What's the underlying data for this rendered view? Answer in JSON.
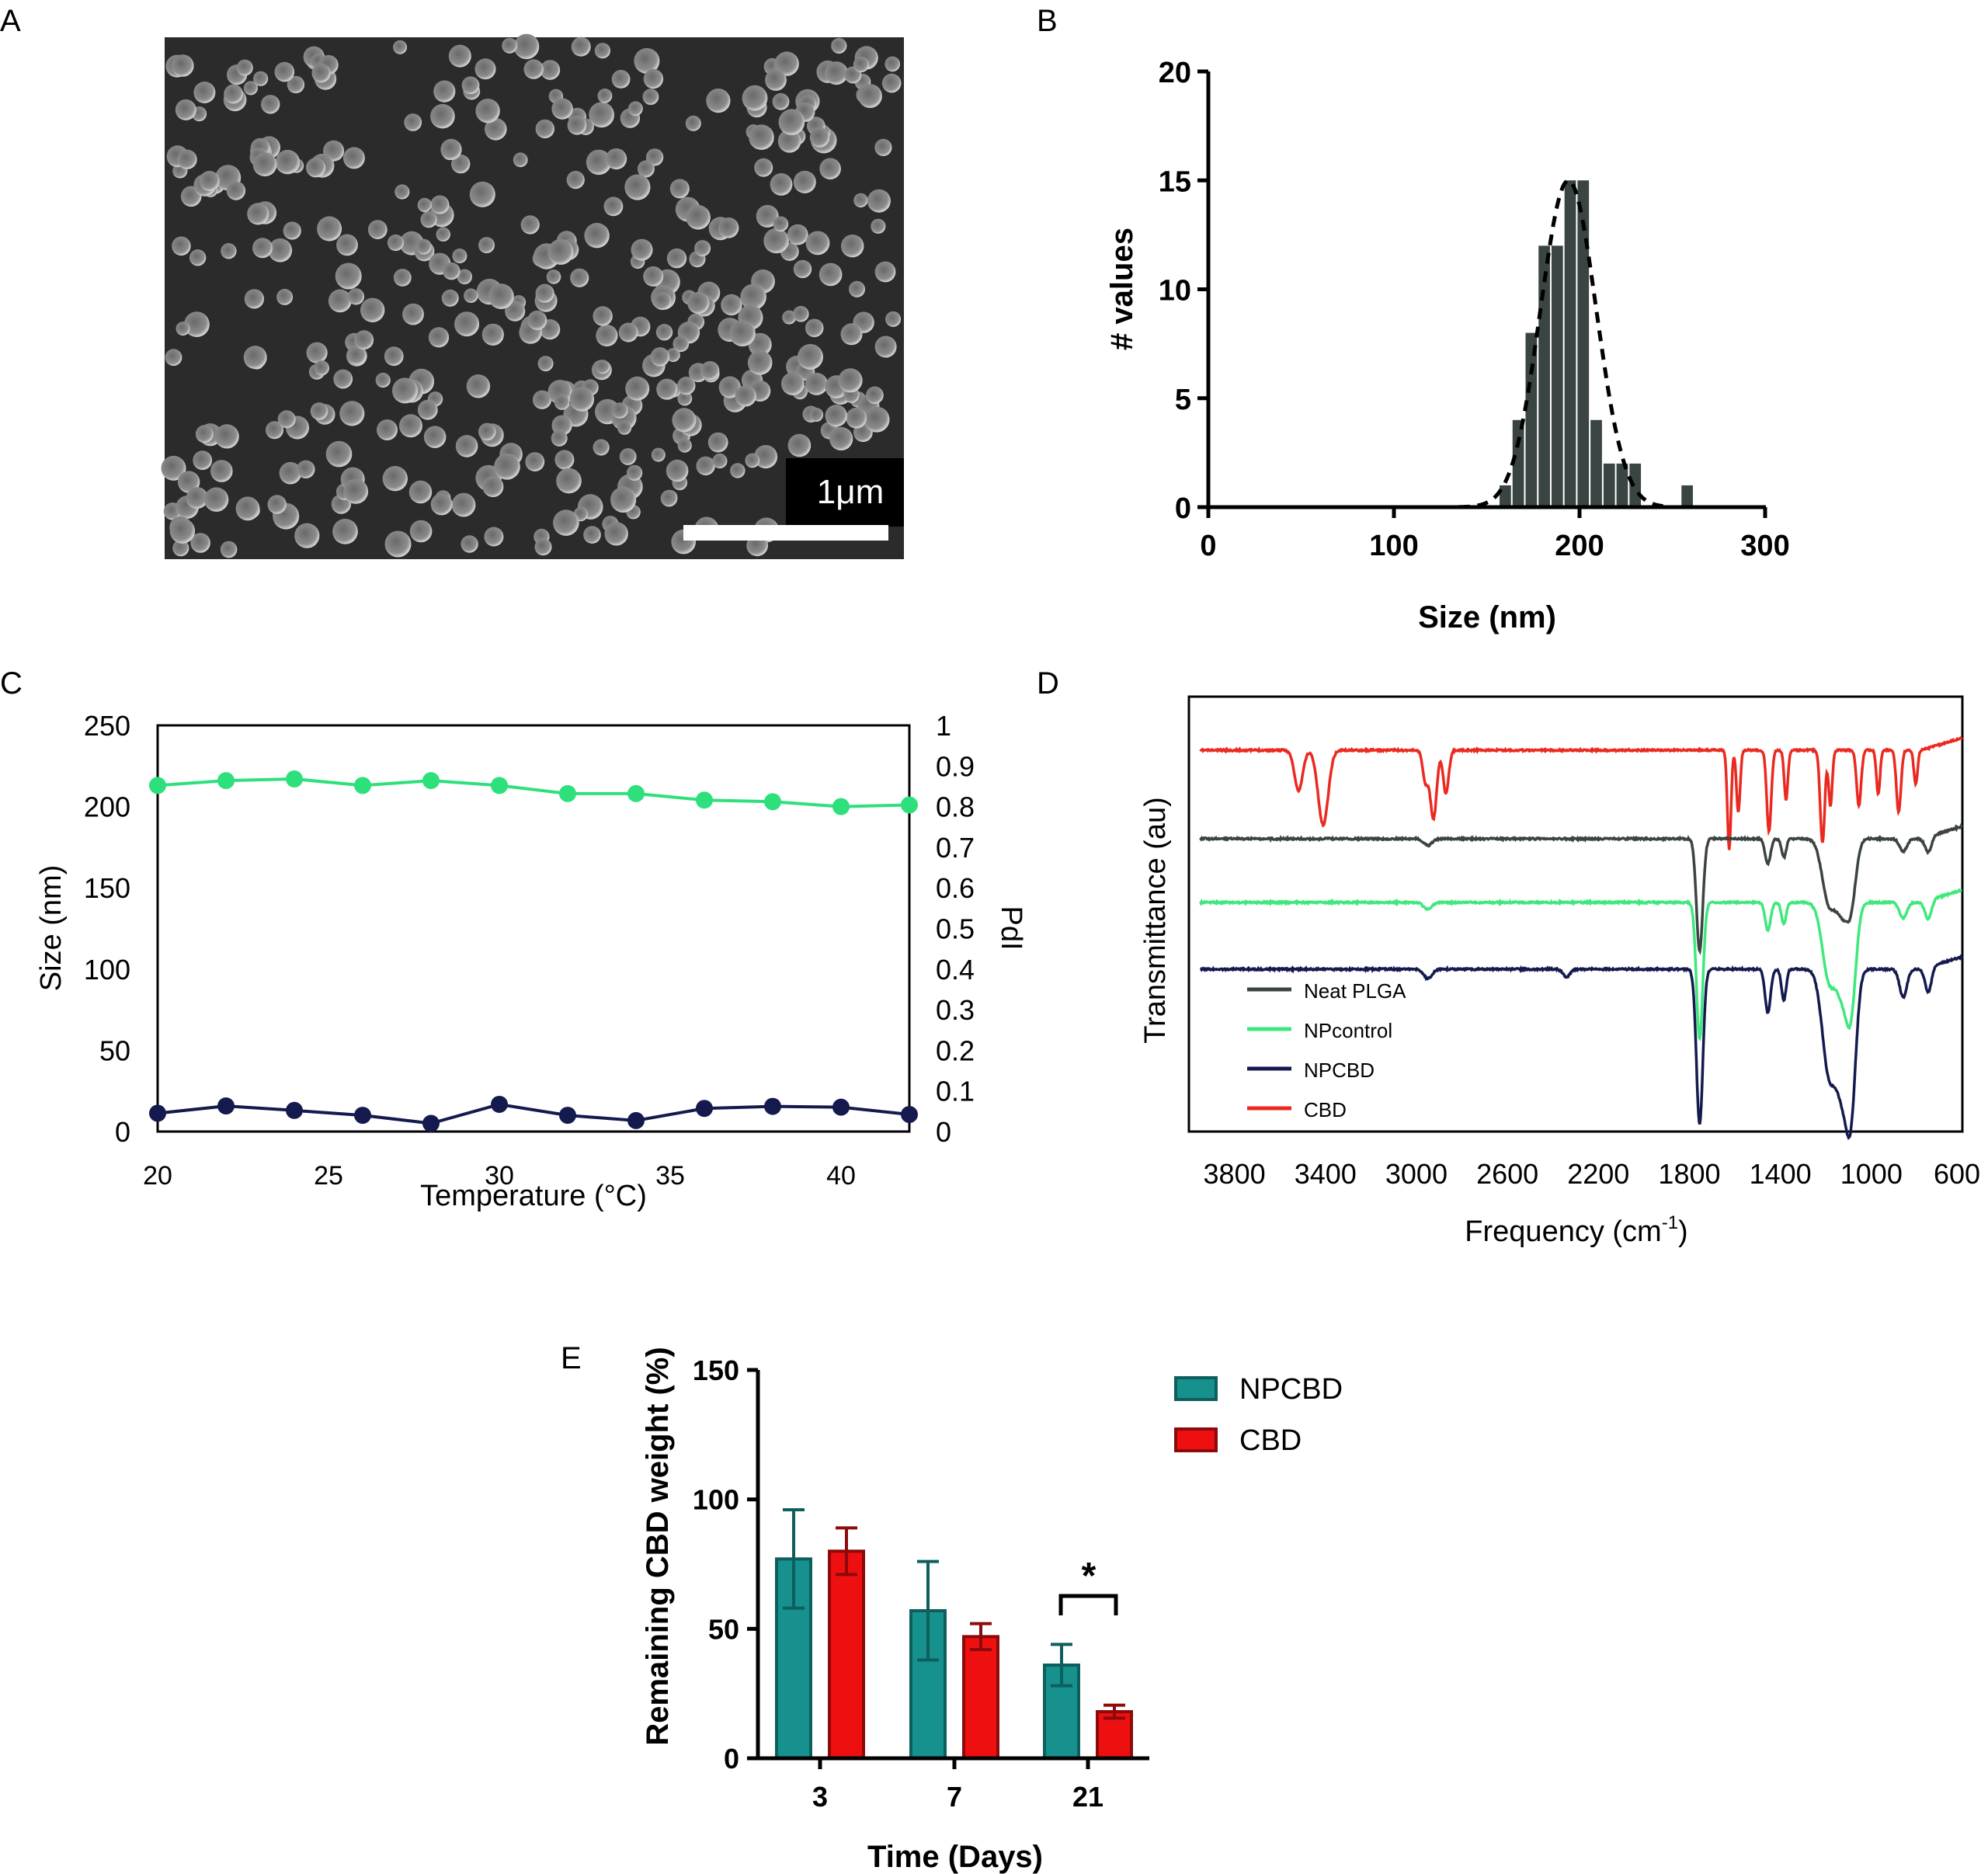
{
  "panels": {
    "A": {
      "letter": "A",
      "scale_bar_label": "1μm"
    },
    "B": {
      "letter": "B"
    },
    "C": {
      "letter": "C"
    },
    "D": {
      "letter": "D"
    },
    "E": {
      "letter": "E"
    }
  },
  "colors": {
    "hist_bar": "#3a4543",
    "size_line": "#2ee07c",
    "pdi_line": "#141a4d",
    "neat_plga": "#3c4442",
    "npcontrol": "#3ee87c",
    "npcbd": "#141a4d",
    "cbd": "#ea2a20",
    "bar_npcbd": "#17918e",
    "bar_cbd": "#ee1010"
  },
  "chart_data": [
    {
      "panel": "B",
      "type": "bar",
      "subtype": "histogram with gaussian fit",
      "xlabel": "Size (nm)",
      "ylabel": "# values",
      "xlim": [
        0,
        300
      ],
      "ylim": [
        0,
        20
      ],
      "xticks": [
        "0",
        "100",
        "200",
        "300"
      ],
      "yticks": [
        "0",
        "5",
        "10",
        "15",
        "20"
      ],
      "bin_width": 7,
      "bins": [
        {
          "center": 160,
          "count": 1
        },
        {
          "center": 167,
          "count": 4
        },
        {
          "center": 174,
          "count": 8
        },
        {
          "center": 181,
          "count": 12
        },
        {
          "center": 188,
          "count": 12
        },
        {
          "center": 195,
          "count": 15
        },
        {
          "center": 202,
          "count": 15
        },
        {
          "center": 209,
          "count": 4
        },
        {
          "center": 216,
          "count": 2
        },
        {
          "center": 223,
          "count": 2
        },
        {
          "center": 230,
          "count": 2
        },
        {
          "center": 258,
          "count": 1
        }
      ],
      "fit": {
        "style": "dashed",
        "mean": 194,
        "sd": 15,
        "peak": 15
      }
    },
    {
      "panel": "C",
      "type": "line",
      "xlabel": "Temperature (°C)",
      "ylabel": "Size (nm)",
      "y2label": "PdI",
      "xlim": [
        20,
        42
      ],
      "ylim": [
        0,
        250
      ],
      "y2lim": [
        0,
        1
      ],
      "xticks": [
        "20",
        "25",
        "30",
        "35",
        "40"
      ],
      "yticks": [
        "0",
        "50",
        "100",
        "150",
        "200",
        "250"
      ],
      "y2ticks": [
        "0",
        "0.1",
        "0.2",
        "0.3",
        "0.4",
        "0.5",
        "0.6",
        "0.7",
        "0.8",
        "0.9",
        "1"
      ],
      "x": [
        20,
        22,
        24,
        26,
        28,
        30,
        32,
        34,
        36,
        38,
        40,
        42
      ],
      "series": [
        {
          "axis": "left",
          "values": [
            213,
            216,
            217,
            213,
            216,
            213,
            208,
            208,
            204,
            203,
            200,
            201
          ]
        },
        {
          "axis": "right",
          "values": [
            0.045,
            0.063,
            0.052,
            0.04,
            0.02,
            0.067,
            0.04,
            0.027,
            0.057,
            0.062,
            0.06,
            0.042
          ]
        }
      ]
    },
    {
      "panel": "D",
      "type": "line",
      "subtype": "FTIR spectra (stacked, offset)",
      "xlabel_prefix": "Frequency (cm",
      "xlabel_sup": "-1",
      "xlabel_suffix": ")",
      "ylabel": "Transmittance (au)",
      "xlim": [
        4000,
        600
      ],
      "x_reversed": true,
      "xticks": [
        "3800",
        "3400",
        "3000",
        "2600",
        "2200",
        "1800",
        "1400",
        "1000",
        "600"
      ],
      "series": [
        {
          "name": "CBD",
          "offset": 0,
          "color_key": "cbd",
          "bands": [
            [
              3518,
              18,
              1.3
            ],
            [
              3410,
              22,
              2.4
            ],
            [
              2960,
              12,
              1.0
            ],
            [
              2925,
              14,
              2.2
            ],
            [
              2870,
              12,
              1.4
            ],
            [
              1625,
              8,
              3.2
            ],
            [
              1585,
              8,
              2.0
            ],
            [
              1450,
              10,
              2.6
            ],
            [
              1375,
              8,
              1.6
            ],
            [
              1215,
              10,
              3.0
            ],
            [
              1180,
              8,
              1.8
            ],
            [
              1055,
              10,
              1.8
            ],
            [
              970,
              8,
              1.4
            ],
            [
              880,
              10,
              2.0
            ],
            [
              805,
              8,
              1.1
            ]
          ]
        },
        {
          "name": "Neat PLGA",
          "offset": 1,
          "color_key": "neat_plga",
          "bands": [
            [
              2950,
              18,
              0.22
            ],
            [
              1755,
              14,
              3.6
            ],
            [
              1455,
              12,
              0.8
            ],
            [
              1385,
              10,
              0.6
            ],
            [
              1185,
              30,
              2.1
            ],
            [
              1130,
              24,
              1.8
            ],
            [
              1090,
              22,
              2.0
            ],
            [
              860,
              16,
              0.4
            ],
            [
              750,
              14,
              0.5
            ]
          ]
        },
        {
          "name": "NPcontrol",
          "offset": 2,
          "color_key": "npcontrol",
          "bands": [
            [
              2950,
              18,
              0.22
            ],
            [
              1755,
              14,
              4.4
            ],
            [
              1455,
              12,
              0.9
            ],
            [
              1385,
              10,
              0.7
            ],
            [
              1185,
              30,
              2.5
            ],
            [
              1130,
              24,
              2.2
            ],
            [
              1090,
              22,
              3.3
            ],
            [
              860,
              16,
              0.5
            ],
            [
              750,
              14,
              0.6
            ]
          ]
        },
        {
          "name": "NPCBD",
          "offset": 3,
          "color_key": "npcbd",
          "bands": [
            [
              2950,
              18,
              0.3
            ],
            [
              2340,
              15,
              0.25
            ],
            [
              1755,
              14,
              5.0
            ],
            [
              1455,
              12,
              1.4
            ],
            [
              1385,
              10,
              1.0
            ],
            [
              1185,
              30,
              3.4
            ],
            [
              1130,
              24,
              3.0
            ],
            [
              1090,
              22,
              4.4
            ],
            [
              860,
              16,
              0.9
            ],
            [
              750,
              14,
              0.8
            ]
          ]
        }
      ],
      "legend": [
        {
          "name": "Neat PLGA",
          "color_key": "neat_plga"
        },
        {
          "name": "NPcontrol",
          "color_key": "npcontrol"
        },
        {
          "name": "NPCBD",
          "color_key": "npcbd"
        },
        {
          "name": "CBD",
          "color_key": "cbd"
        }
      ]
    },
    {
      "panel": "E",
      "type": "bar",
      "subtype": "grouped bar with error bars",
      "xlabel": "Time (Days)",
      "ylabel": "Remaining CBD weight (%)",
      "ylim": [
        0,
        150
      ],
      "yticks": [
        "0",
        "50",
        "100",
        "150"
      ],
      "categories": [
        "3",
        "7",
        "21"
      ],
      "series": [
        {
          "name": "NPCBD",
          "color_key": "bar_npcbd",
          "values": [
            77,
            57,
            36
          ],
          "errors": [
            19,
            19,
            8
          ]
        },
        {
          "name": "CBD",
          "color_key": "bar_cbd",
          "values": [
            80,
            47,
            18
          ],
          "errors": [
            9,
            5,
            2.5
          ]
        }
      ],
      "significance": {
        "between": "21",
        "label": "*"
      }
    }
  ]
}
